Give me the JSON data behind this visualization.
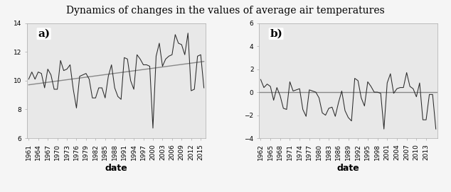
{
  "title": "Dynamics of changes in the values of average air temperatures",
  "years_a": [
    1961,
    1962,
    1963,
    1964,
    1965,
    1966,
    1967,
    1968,
    1969,
    1970,
    1971,
    1972,
    1973,
    1974,
    1975,
    1976,
    1977,
    1978,
    1979,
    1980,
    1981,
    1982,
    1983,
    1984,
    1985,
    1986,
    1987,
    1988,
    1989,
    1990,
    1991,
    1992,
    1993,
    1994,
    1995,
    1996,
    1997,
    1998,
    1999,
    2000,
    2001,
    2002,
    2003,
    2004,
    2005,
    2006,
    2007,
    2008,
    2009,
    2010,
    2011,
    2012,
    2013,
    2014,
    2015,
    2016
  ],
  "values_a": [
    10.1,
    10.6,
    10.1,
    10.6,
    10.5,
    9.5,
    10.8,
    10.4,
    9.4,
    9.4,
    11.4,
    10.7,
    10.8,
    11.1,
    9.4,
    8.1,
    10.3,
    10.4,
    10.5,
    10.1,
    8.8,
    8.8,
    9.5,
    9.5,
    8.8,
    10.3,
    11.1,
    9.5,
    8.9,
    8.7,
    11.6,
    11.5,
    10.0,
    9.4,
    11.8,
    11.5,
    11.1,
    11.1,
    11.0,
    6.7,
    11.7,
    12.6,
    11.0,
    11.5,
    11.7,
    11.8,
    13.2,
    12.6,
    12.5,
    11.8,
    13.3,
    9.3,
    9.4,
    11.7,
    11.8,
    9.5
  ],
  "xlabel_a": "date",
  "label_a": "a)",
  "ylim_a": [
    6,
    14
  ],
  "yticks_a": [
    6,
    8,
    10,
    12,
    14
  ],
  "xticks_a": [
    1961,
    1964,
    1967,
    1970,
    1973,
    1976,
    1979,
    1982,
    1985,
    1988,
    1991,
    1994,
    1997,
    2000,
    2003,
    2006,
    2009,
    2012,
    2015
  ],
  "years_b": [
    1962,
    1963,
    1964,
    1965,
    1966,
    1967,
    1968,
    1969,
    1970,
    1971,
    1972,
    1973,
    1974,
    1975,
    1976,
    1977,
    1978,
    1979,
    1980,
    1981,
    1982,
    1983,
    1984,
    1985,
    1986,
    1987,
    1988,
    1989,
    1990,
    1991,
    1992,
    1993,
    1994,
    1995,
    1996,
    1997,
    1998,
    1999,
    2000,
    2001,
    2002,
    2003,
    2004,
    2005,
    2006,
    2007,
    2008,
    2009,
    2010,
    2011,
    2012,
    2013,
    2014,
    2015,
    2016
  ],
  "values_b": [
    1.1,
    0.4,
    0.7,
    0.5,
    -0.7,
    0.4,
    -0.3,
    -1.4,
    -1.5,
    0.9,
    0.1,
    0.2,
    0.3,
    -1.5,
    -2.1,
    0.2,
    0.1,
    0.0,
    -0.5,
    -1.8,
    -2.0,
    -1.4,
    -1.3,
    -2.1,
    -0.9,
    0.1,
    -1.6,
    -2.2,
    -2.5,
    1.2,
    1.0,
    -0.5,
    -1.2,
    0.9,
    0.5,
    0.0,
    0.0,
    -0.1,
    -3.2,
    0.8,
    1.6,
    -0.1,
    0.3,
    0.4,
    0.4,
    1.7,
    0.5,
    0.3,
    -0.4,
    0.8,
    -2.4,
    -2.4,
    -0.2,
    -0.2,
    -3.2
  ],
  "xlabel_b": "date",
  "label_b": "b)",
  "ylim_b": [
    -4,
    6
  ],
  "yticks_b": [
    -4,
    -2,
    0,
    2,
    4,
    6
  ],
  "xticks_b": [
    1962,
    1965,
    1968,
    1971,
    1974,
    1977,
    1980,
    1983,
    1986,
    1989,
    1992,
    1995,
    1998,
    2001,
    2004,
    2007,
    2010,
    2013
  ],
  "bg_color": "#e8e8e8",
  "fig_bg_color": "#f5f5f5",
  "line_color": "#2a2a2a",
  "trend_color": "#888888",
  "spine_color": "#aaaaaa",
  "title_fontsize": 10,
  "label_fontsize": 11,
  "tick_fontsize": 6.5,
  "xlabel_fontsize": 9
}
